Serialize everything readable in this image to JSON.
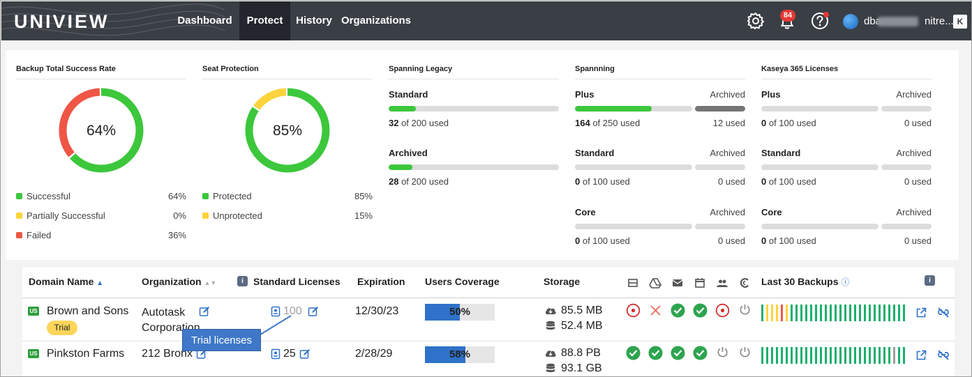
{
  "header": {
    "logo": "UNIVIEW",
    "nav": [
      {
        "label": "Dashboard",
        "active": false
      },
      {
        "label": "Protect",
        "active": true
      },
      {
        "label": "History",
        "active": false
      },
      {
        "label": "Organizations",
        "active": false
      }
    ],
    "notifications_count": "84",
    "user_name": "dba",
    "user_name_suffix": "nitre...",
    "icons": [
      "gear-icon",
      "bell-icon",
      "help-icon",
      "avatar",
      "collapse-k-icon"
    ]
  },
  "summary": {
    "backup_rate": {
      "title": "Backup Total Success Rate",
      "center_label": "64%",
      "segments": [
        {
          "label": "Successful",
          "value": "64%",
          "pct": 64,
          "color": "#3cc73c"
        },
        {
          "label": "Partially Successful",
          "value": "0%",
          "pct": 0,
          "color": "#fcd33d"
        },
        {
          "label": "Failed",
          "value": "36%",
          "pct": 36,
          "color": "#ef5646"
        }
      ]
    },
    "seat_protection": {
      "title": "Seat Protection",
      "center_label": "85%",
      "segments": [
        {
          "label": "Protected",
          "value": "85%",
          "pct": 85,
          "color": "#3cc73c"
        },
        {
          "label": "Unprotected",
          "value": "15%",
          "pct": 15,
          "color": "#fcd33d"
        }
      ]
    },
    "spanning_legacy": {
      "title": "Spanning Legacy",
      "rows": [
        {
          "label": "Standard",
          "used": "32",
          "total": " of 200 used",
          "fraction": 0.16
        },
        {
          "label": "Archived",
          "used": "28",
          "total": " of 200 used",
          "fraction": 0.14
        }
      ]
    },
    "spanning": {
      "title": "Spannning",
      "archived_label": "Archived",
      "rows": [
        {
          "label": "Plus",
          "used": "164",
          "total": " of 250 used",
          "fraction": 0.656,
          "archived_used": "12 used",
          "archived_fraction": 1.0
        },
        {
          "label": "Standard",
          "used": "0",
          "total": " of 100 used",
          "fraction": 0,
          "archived_used": "0 used",
          "archived_fraction": 0
        },
        {
          "label": "Core",
          "used": "0",
          "total": " of 100 used",
          "fraction": 0,
          "archived_used": "0 used",
          "archived_fraction": 0
        }
      ]
    },
    "kaseya": {
      "title": "Kaseya 365 Licenses",
      "archived_label": "Archived",
      "rows": [
        {
          "label": "Plus",
          "used": "0",
          "total": " of 100 used",
          "fraction": 0,
          "archived_used": "0 used",
          "archived_fraction": 0
        },
        {
          "label": "Standard",
          "used": "0",
          "total": " of 100 used",
          "fraction": 0,
          "archived_used": "0 used",
          "archived_fraction": 0
        },
        {
          "label": "Core",
          "used": "0",
          "total": " of 100 used",
          "fraction": 0,
          "archived_used": "0 used",
          "archived_fraction": 0
        }
      ]
    }
  },
  "table": {
    "columns": {
      "domain": "Domain Name",
      "organization": "Organization",
      "licenses": "Standard Licenses",
      "expiration": "Expiration",
      "coverage": "Users Coverage",
      "storage": "Storage",
      "backups": "Last 30 Backups"
    },
    "service_icons": [
      "server-icon",
      "google-drive-icon",
      "mail-icon",
      "calendar-icon",
      "contacts-icon",
      "sharepoint-icon"
    ],
    "rows": [
      {
        "country": "US",
        "domain": "Brown and Sons",
        "badge": "Trial",
        "organization": "Autotask Corporation",
        "licenses": "100",
        "expiration": "12/30/23",
        "coverage_label": "50%",
        "coverage_pct": 50,
        "storage_cloud": "85.5 MB",
        "storage_local": "52.4 MB",
        "services": [
          "fail",
          "cross",
          "ok",
          "ok",
          "fail",
          "off"
        ],
        "backups": [
          "g",
          "y",
          "y",
          "y",
          "r",
          "y",
          "g",
          "g",
          "g",
          "g",
          "g",
          "g",
          "g",
          "g",
          "g",
          "g",
          "g",
          "g",
          "g",
          "g",
          "g",
          "g",
          "g",
          "g",
          "g",
          "g",
          "g",
          "g",
          "g",
          "g"
        ]
      },
      {
        "country": "US",
        "domain": "Pinkston Farms",
        "badge": "",
        "organization": "212 Bronx",
        "licenses": "25",
        "expiration": "2/28/29",
        "coverage_label": "58%",
        "coverage_pct": 58,
        "storage_cloud": "88.8 PB",
        "storage_local": "93.1 GB",
        "services": [
          "ok",
          "ok",
          "ok",
          "ok",
          "off",
          "off"
        ],
        "backups": [
          "g",
          "g",
          "g",
          "g",
          "g",
          "g",
          "g",
          "g",
          "g",
          "g",
          "g",
          "g",
          "g",
          "g",
          "g",
          "g",
          "g",
          "g",
          "g",
          "g",
          "g",
          "g",
          "g",
          "g",
          "g",
          "g",
          "g",
          "x",
          "g",
          "g"
        ]
      }
    ],
    "tooltip": "Trial licenses"
  }
}
